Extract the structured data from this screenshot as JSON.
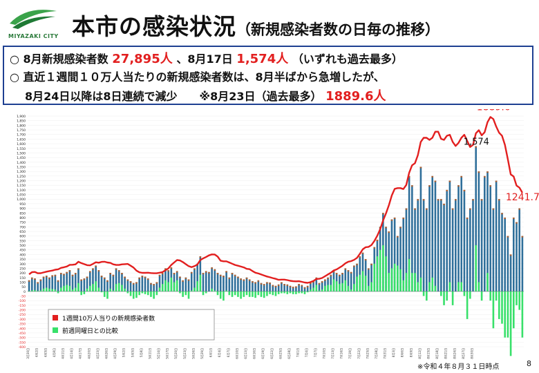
{
  "header": {
    "logo_text": "MIYAZAKI CITY",
    "title_main": "本市の感染状況",
    "title_sub": "（新規感染者数の日毎の推移）"
  },
  "info": {
    "line1": {
      "bullet": "○",
      "label1": "8月新規感染者数",
      "value1": "27,895人",
      "label2": "、8月17日",
      "value2": "1,574人",
      "note": "（いずれも過去最多）"
    },
    "line2": {
      "bullet": "○",
      "text": "直近１週間１０万人当たりの新規感染者数は、8月半ばから急増したが、"
    },
    "line3": {
      "text": "8月24日以降は8日連続で減少　　※8月23日（過去最多）",
      "value": "1889.6人"
    }
  },
  "footnote": "※令和４年８月３１日時点",
  "page_number": "8",
  "colors": {
    "bar_total": "#2f6f9a",
    "bar_cap": "#b06030",
    "comparison": "#38e06a",
    "line": "#e21f1f",
    "accent_red": "#e21f1f",
    "border": "#1d3f91"
  },
  "chart_data": {
    "type": "bar",
    "secondary_type": "line",
    "legend": {
      "placement": "left-middle",
      "line_label": "1週間10万人当りの新規感染者数",
      "bar_label": "前週同曜日との比較"
    },
    "ylim": [
      -600,
      1900
    ],
    "y_ticks": [
      1900,
      1850,
      1800,
      1750,
      1700,
      1650,
      1600,
      1550,
      1500,
      1450,
      1400,
      1350,
      1300,
      1250,
      1200,
      1150,
      1100,
      1050,
      1000,
      950,
      900,
      850,
      800,
      750,
      700,
      650,
      600,
      550,
      500,
      450,
      400,
      350,
      300,
      250,
      200,
      150,
      100,
      50,
      0,
      -50,
      -100,
      -150,
      -200,
      -250,
      -300,
      -350,
      -400,
      -450,
      -500,
      -550,
      -600
    ],
    "y_tick_labels_display": [
      "1,900",
      "1,850",
      "1,800",
      "1,750",
      "1,700",
      "1,650",
      "1,600",
      "1,550",
      "1,500",
      "1,450",
      "1,400",
      "1,350",
      "1,300",
      "1,250",
      "1,200",
      "1,150",
      "1,100",
      "1,050",
      "1,000",
      "950",
      "900",
      "850",
      "800",
      "750",
      "700",
      "650",
      "600",
      "550",
      "500",
      "450",
      "400",
      "350",
      "300",
      "250",
      "200",
      "150",
      "100",
      "50",
      "0",
      "-50",
      "-100",
      "-150",
      "-200",
      "-250",
      "-300",
      "-350",
      "-400",
      "-450",
      "-500",
      "-550",
      "-600"
    ],
    "x_tick_labels": [
      "3月30日",
      "4月2日",
      "4月5日",
      "4月8日",
      "4月11日",
      "4月14日",
      "4月17日",
      "4月20日",
      "4月23日",
      "4月26日",
      "4月29日",
      "5月2日",
      "5月5日",
      "5月8日",
      "5月11日",
      "5月14日",
      "5月17日",
      "5月20日",
      "5月23日",
      "5月26日",
      "5月29日",
      "6月1日",
      "6月4日",
      "6月7日",
      "6月10日",
      "6月13日",
      "6月16日",
      "6月19日",
      "6月22日",
      "6月25日",
      "6月28日",
      "7月1日",
      "7月4日",
      "7月7日",
      "7月10日",
      "7月13日",
      "7月16日",
      "7月19日",
      "7月22日",
      "7月25日",
      "7月28日",
      "7月31日",
      "8月3日",
      "8月6日",
      "8月9日",
      "8月12日",
      "8月15日",
      "8月18日",
      "8月21日",
      "8月24日",
      "8月27日",
      "8月30日"
    ],
    "x_tick_every": 3,
    "daily_new_cases": [
      120,
      150,
      140,
      100,
      130,
      160,
      170,
      150,
      175,
      180,
      120,
      200,
      190,
      210,
      230,
      180,
      200,
      250,
      130,
      140,
      160,
      220,
      250,
      280,
      230,
      170,
      150,
      120,
      200,
      180,
      250,
      230,
      200,
      160,
      130,
      110,
      90,
      100,
      150,
      170,
      160,
      140,
      90,
      80,
      100,
      180,
      200,
      250,
      230,
      260,
      200,
      220,
      160,
      120,
      150,
      130,
      210,
      250,
      300,
      380,
      200,
      220,
      210,
      260,
      240,
      200,
      180,
      170,
      220,
      150,
      200,
      180,
      160,
      140,
      130,
      150,
      130,
      110,
      100,
      120,
      90,
      80,
      100,
      95,
      70,
      60,
      75,
      100,
      80,
      75,
      60,
      50,
      55,
      80,
      70,
      45,
      60,
      95,
      110,
      150,
      90,
      110,
      130,
      150,
      180,
      220,
      200,
      180,
      200,
      250,
      230,
      210,
      280,
      300,
      380,
      420,
      350,
      250,
      300,
      480,
      560,
      700,
      850,
      700,
      650,
      780,
      800,
      600,
      700,
      800,
      900,
      1250,
      1150,
      900,
      1000,
      1350,
      1000,
      900,
      1150,
      1250,
      1200,
      1000,
      1000,
      950,
      1100,
      1200,
      900,
      1000,
      1150,
      1250,
      1100,
      800,
      900,
      1000,
      1574,
      1300,
      1000,
      1250,
      1300,
      1150,
      900,
      1200,
      1000,
      850,
      800,
      600,
      400,
      800,
      750,
      900,
      600
    ],
    "week_over_week_diff": [
      5,
      10,
      15,
      5,
      10,
      30,
      40,
      30,
      25,
      20,
      -20,
      40,
      60,
      70,
      60,
      20,
      40,
      90,
      -40,
      -30,
      30,
      60,
      80,
      110,
      40,
      -10,
      -60,
      -80,
      30,
      10,
      80,
      90,
      70,
      30,
      -20,
      -50,
      -80,
      -70,
      -40,
      -20,
      -30,
      -40,
      -60,
      -80,
      -40,
      40,
      80,
      120,
      100,
      150,
      100,
      120,
      -20,
      -60,
      -40,
      -80,
      10,
      40,
      110,
      180,
      -40,
      -20,
      0,
      30,
      10,
      -40,
      -80,
      -100,
      10,
      -40,
      -60,
      -40,
      -60,
      -80,
      -60,
      -40,
      -60,
      -60,
      -70,
      -40,
      -60,
      -70,
      -50,
      -30,
      -40,
      -50,
      -30,
      -20,
      -20,
      -30,
      -20,
      -30,
      -30,
      -20,
      -20,
      -30,
      -10,
      20,
      40,
      70,
      10,
      20,
      60,
      70,
      70,
      130,
      110,
      80,
      90,
      120,
      60,
      20,
      80,
      160,
      180,
      220,
      170,
      60,
      100,
      300,
      380,
      450,
      500,
      380,
      200,
      250,
      300,
      280,
      240,
      120,
      200,
      350,
      200,
      200,
      100,
      150,
      -50,
      -100,
      100,
      150,
      60,
      0,
      -50,
      -150,
      -100,
      100,
      -150,
      0,
      100,
      100,
      -50,
      -300,
      -80,
      0,
      500,
      100,
      -100,
      0,
      200,
      -100,
      -400,
      -100,
      -300,
      -350,
      -500,
      -500,
      -700,
      -400,
      -150,
      -200,
      -500
    ]
  }
}
